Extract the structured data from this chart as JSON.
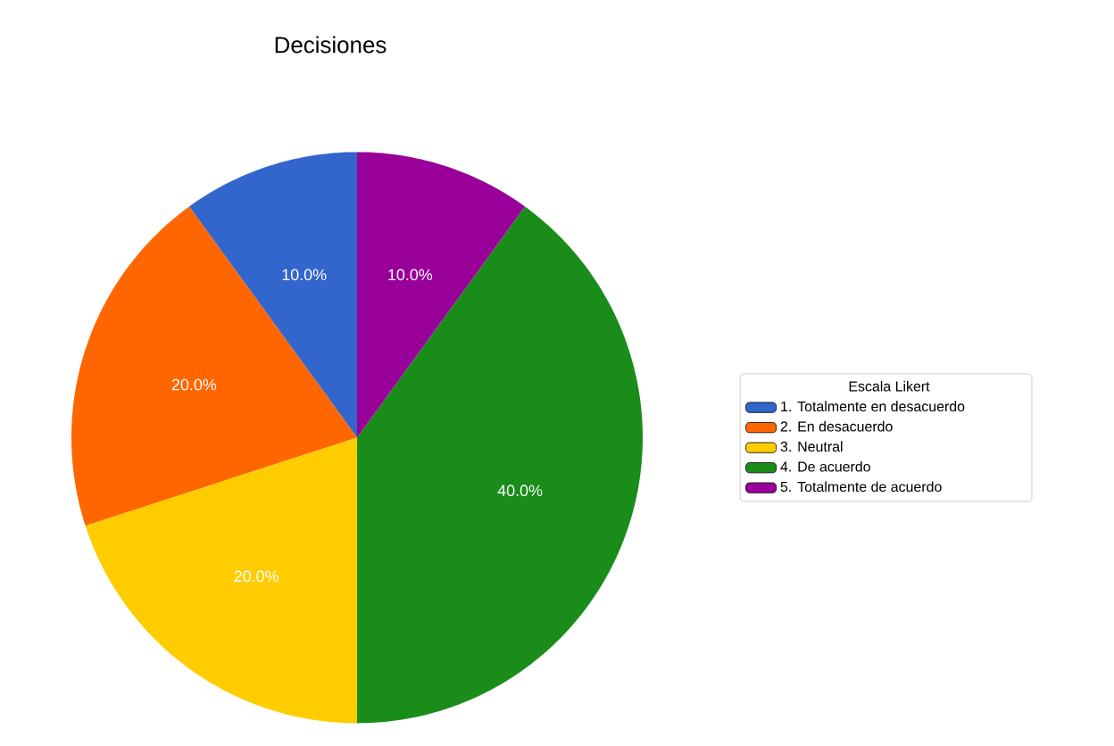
{
  "chart_data": {
    "type": "pie",
    "title": "Decisiones",
    "legend_title": "Escala Likert",
    "legend": "right",
    "categories": [
      "1. Totalmente en desacuerdo",
      "2. En desacuerdo",
      "3. Neutral",
      "4. De acuerdo",
      "5. Totalmente de acuerdo"
    ],
    "values": [
      10,
      20,
      20,
      40,
      10
    ],
    "value_labels": [
      "10.0%",
      "20.0%",
      "20.0%",
      "40.0%",
      "10.0%"
    ],
    "colors": [
      "#3366cc",
      "#ff6600",
      "#ffcc00",
      "#1a8c1a",
      "#990099"
    ]
  }
}
